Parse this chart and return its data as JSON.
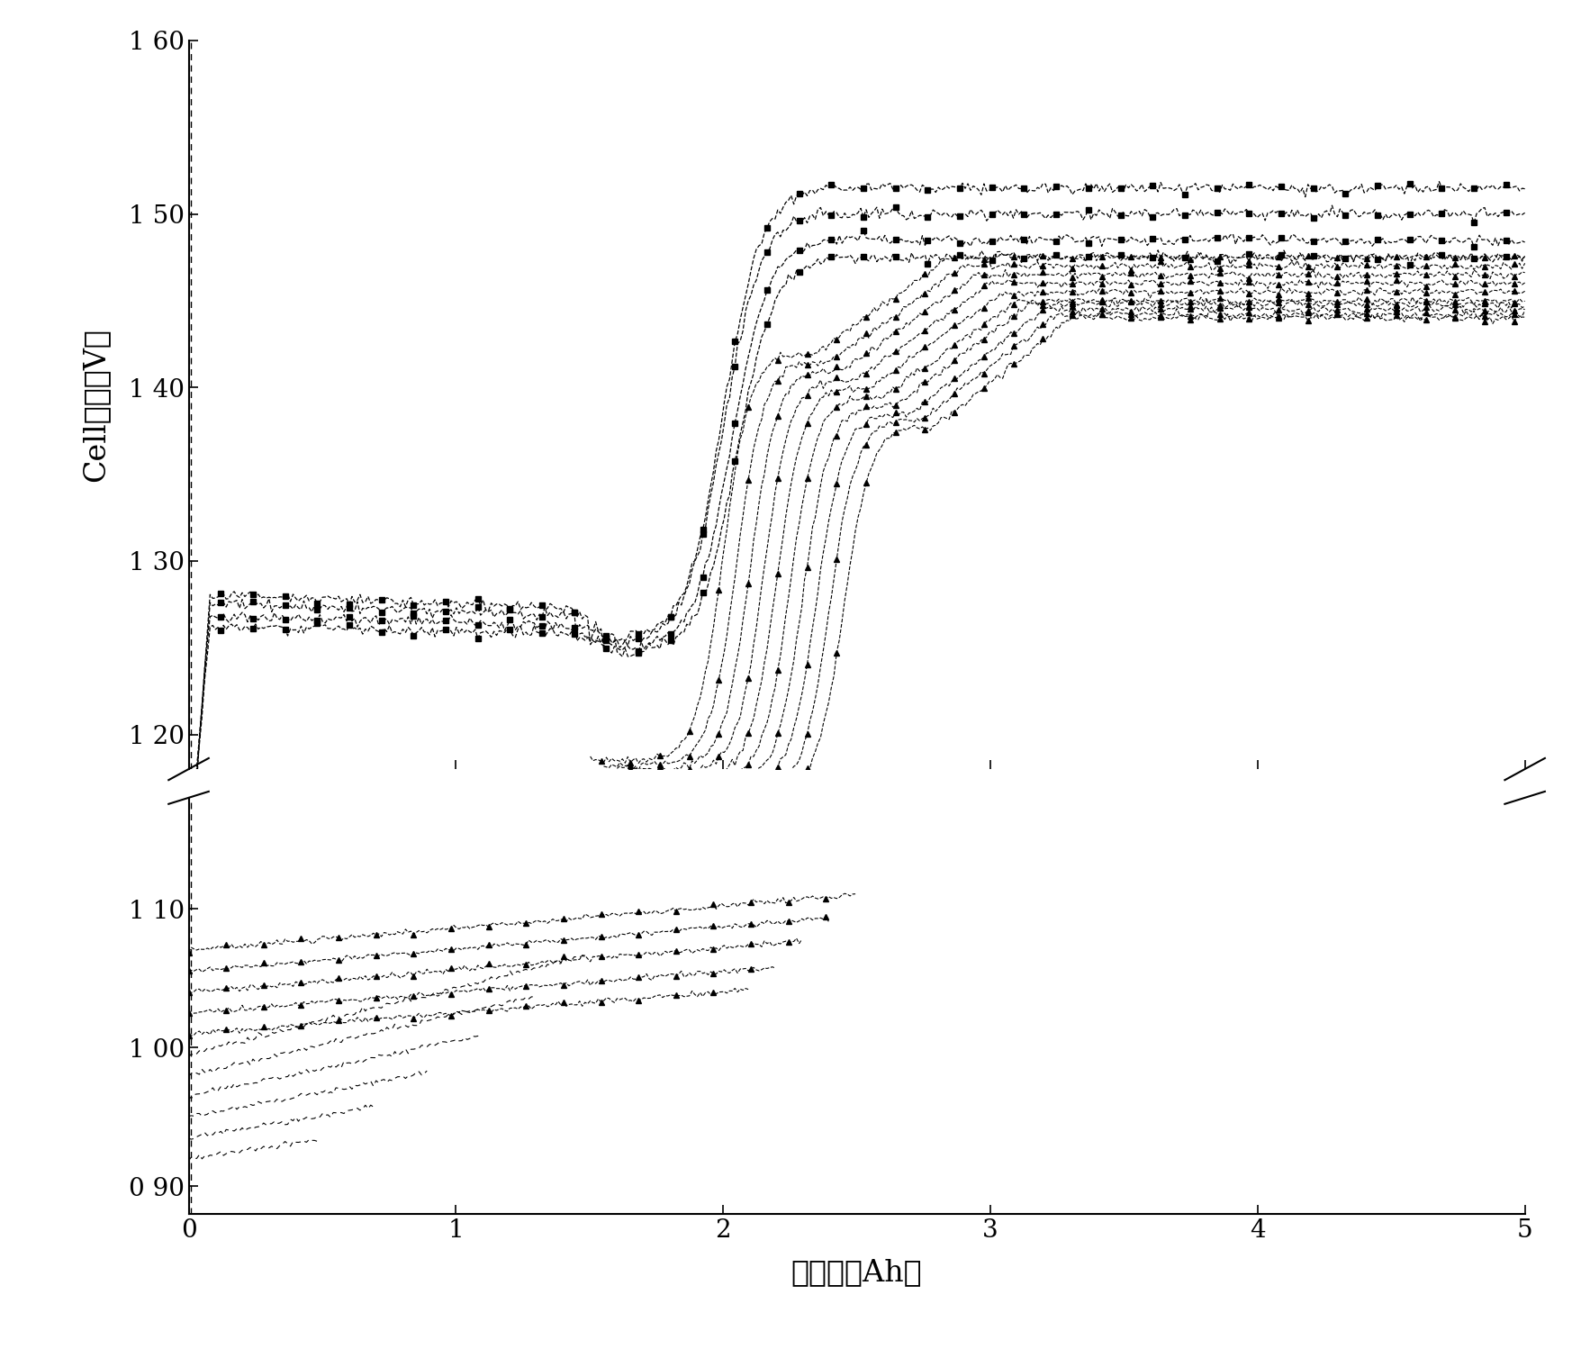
{
  "xlabel": "充電量（Ah）",
  "ylabel": "Cell電圧（V）",
  "xlim": [
    0,
    5
  ],
  "ylim_upper": [
    1.18,
    1.6
  ],
  "ylim_lower": [
    0.88,
    1.18
  ],
  "yticks_upper": [
    1.2,
    1.3,
    1.4,
    1.5,
    1.6
  ],
  "ytick_labels_upper": [
    "1 20",
    "1 30",
    "1 40",
    "1 50",
    "1 60"
  ],
  "yticks_lower": [
    0.9,
    1.0,
    1.1
  ],
  "ytick_labels_lower": [
    "0 90",
    "1 00",
    "1 10"
  ],
  "xticks": [
    0,
    1,
    2,
    3,
    4,
    5
  ],
  "background_color": "#ffffff",
  "line_color": "#000000",
  "sq_curves": [
    {
      "y_start": 1.185,
      "plateau1": 1.28,
      "plateau1_end": 1.45,
      "plateau2": 1.255,
      "plateau2_end": 1.65,
      "final": 1.515
    },
    {
      "y_start": 1.19,
      "plateau1": 1.275,
      "plateau1_end": 1.5,
      "plateau2": 1.252,
      "plateau2_end": 1.65,
      "final": 1.5
    },
    {
      "y_start": 1.19,
      "plateau1": 1.268,
      "plateau1_end": 1.55,
      "plateau2": 1.249,
      "plateau2_end": 1.68,
      "final": 1.485
    },
    {
      "y_start": 1.19,
      "plateau1": 1.262,
      "plateau1_end": 1.6,
      "plateau2": 1.247,
      "plateau2_end": 1.7,
      "final": 1.475
    }
  ],
  "tri_curves": [
    {
      "x_start": 1.5,
      "y_start": 1.185,
      "inflect": 2.0,
      "peak_x": 2.35,
      "peak_y": 1.42,
      "end_y": 1.475
    },
    {
      "x_start": 1.55,
      "y_start": 1.182,
      "inflect": 2.05,
      "peak_x": 2.4,
      "peak_y": 1.415,
      "end_y": 1.47
    },
    {
      "x_start": 1.6,
      "y_start": 1.18,
      "inflect": 2.1,
      "peak_x": 2.45,
      "peak_y": 1.41,
      "end_y": 1.465
    },
    {
      "x_start": 1.65,
      "y_start": 1.178,
      "inflect": 2.15,
      "peak_x": 2.5,
      "peak_y": 1.405,
      "end_y": 1.46
    },
    {
      "x_start": 1.7,
      "y_start": 1.176,
      "inflect": 2.2,
      "peak_x": 2.55,
      "peak_y": 1.4,
      "end_y": 1.455
    },
    {
      "x_start": 1.75,
      "y_start": 1.174,
      "inflect": 2.25,
      "peak_x": 2.6,
      "peak_y": 1.395,
      "end_y": 1.45
    },
    {
      "x_start": 1.8,
      "y_start": 1.172,
      "inflect": 2.3,
      "peak_x": 2.65,
      "peak_y": 1.39,
      "end_y": 1.448
    },
    {
      "x_start": 1.85,
      "y_start": 1.17,
      "inflect": 2.35,
      "peak_x": 2.7,
      "peak_y": 1.385,
      "end_y": 1.445
    },
    {
      "x_start": 1.9,
      "y_start": 1.168,
      "inflect": 2.4,
      "peak_x": 2.75,
      "peak_y": 1.382,
      "end_y": 1.442
    },
    {
      "x_start": 1.95,
      "y_start": 1.166,
      "inflect": 2.45,
      "peak_x": 2.8,
      "peak_y": 1.378,
      "end_y": 1.44
    }
  ],
  "lower_tri_curves": [
    {
      "x_start": 0.0,
      "y_start": 1.07,
      "slope": 0.016,
      "x_end": 2.5
    },
    {
      "x_start": 0.0,
      "y_start": 1.055,
      "slope": 0.016,
      "x_end": 2.4
    },
    {
      "x_start": 0.0,
      "y_start": 1.04,
      "slope": 0.016,
      "x_end": 2.3
    },
    {
      "x_start": 0.0,
      "y_start": 1.025,
      "slope": 0.015,
      "x_end": 2.2
    },
    {
      "x_start": 0.0,
      "y_start": 1.01,
      "slope": 0.015,
      "x_end": 2.1
    }
  ],
  "lower_dashed_curves": [
    {
      "x_start": 0.0,
      "y_start": 0.995,
      "slope": 0.048,
      "x_end": 1.5
    },
    {
      "x_start": 0.0,
      "y_start": 0.98,
      "slope": 0.044,
      "x_end": 1.3
    },
    {
      "x_start": 0.0,
      "y_start": 0.965,
      "slope": 0.04,
      "x_end": 1.1
    },
    {
      "x_start": 0.0,
      "y_start": 0.95,
      "slope": 0.036,
      "x_end": 0.9
    },
    {
      "x_start": 0.0,
      "y_start": 0.935,
      "slope": 0.032,
      "x_end": 0.7
    },
    {
      "x_start": 0.0,
      "y_start": 0.92,
      "slope": 0.028,
      "x_end": 0.5
    }
  ]
}
